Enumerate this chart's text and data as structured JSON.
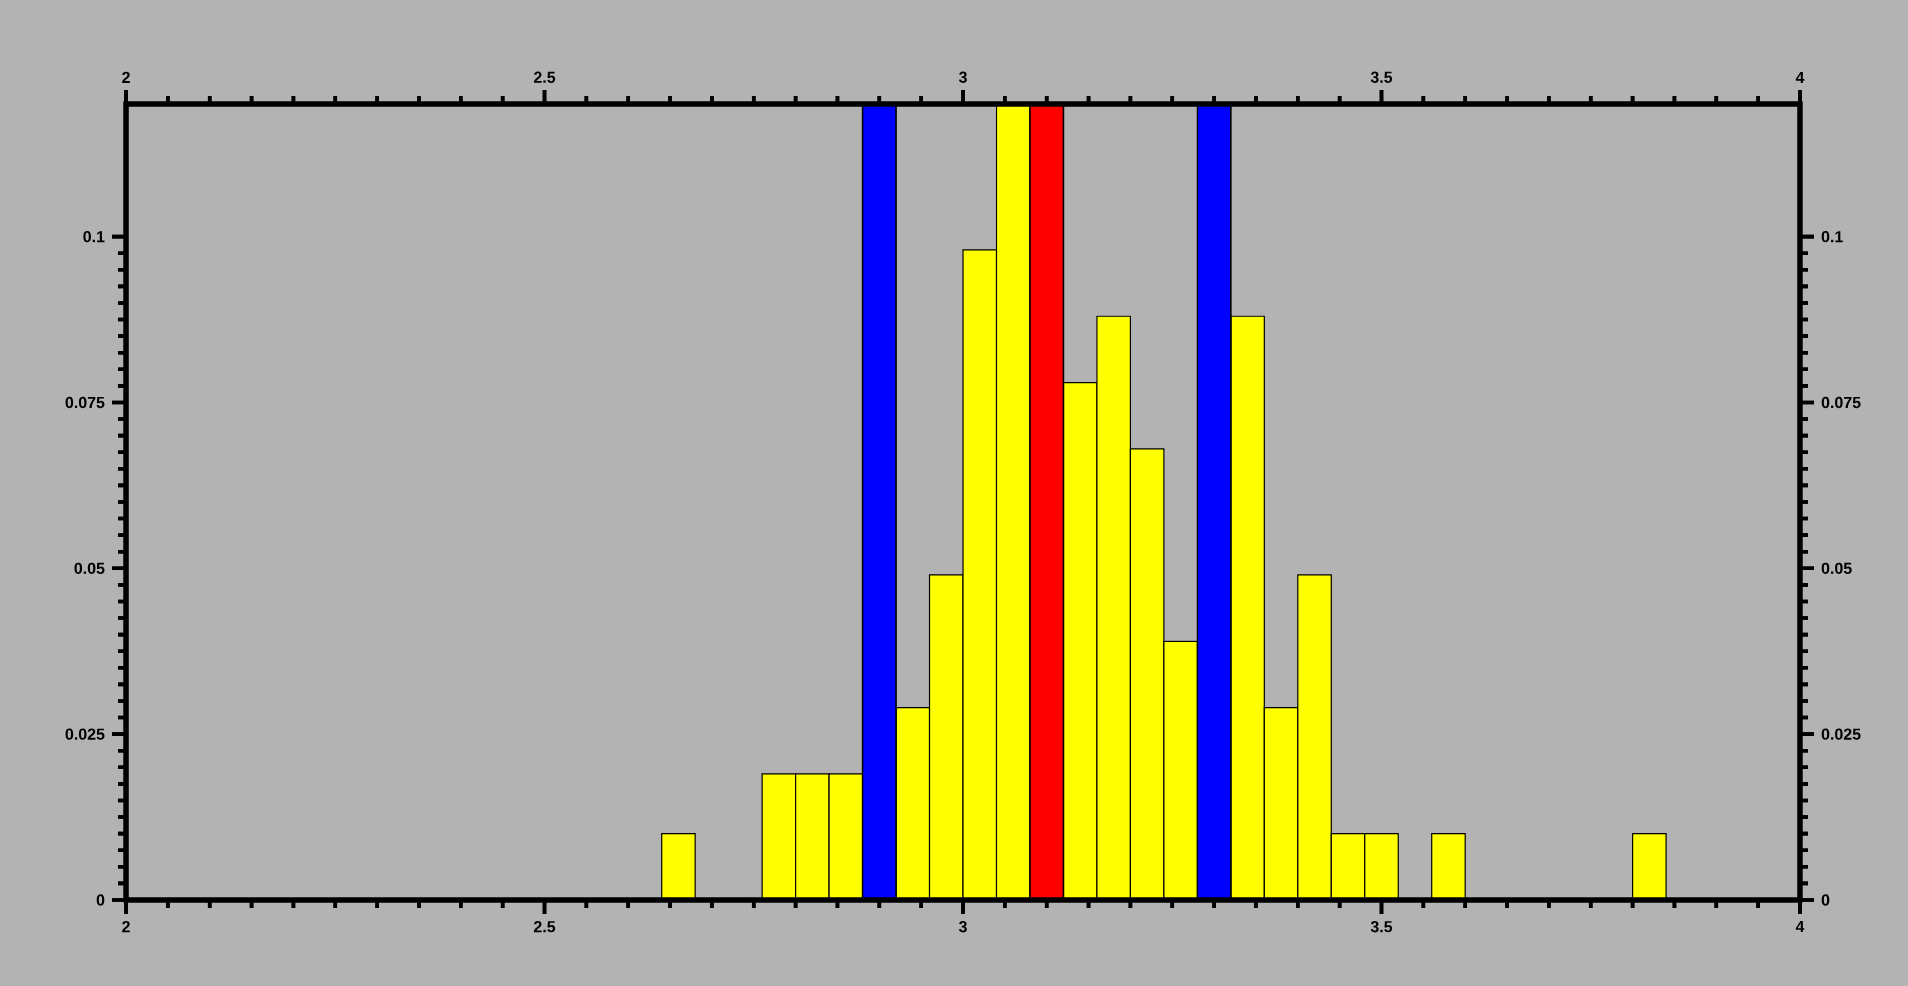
{
  "chart_data": {
    "type": "histogram",
    "color": "#ffff00",
    "bins": [
      2.64,
      2.68,
      2.72,
      2.76,
      2.8,
      2.84,
      2.88,
      2.92,
      2.96,
      3.0,
      3.04,
      3.08,
      3.12,
      3.16,
      3.2,
      3.24,
      3.28,
      3.32,
      3.36,
      3.4,
      3.44,
      3.48,
      3.52,
      3.56,
      3.6,
      3.64,
      3.68,
      3.72,
      3.76,
      3.8,
      3.84
    ],
    "values": [
      0.01,
      0,
      0,
      0.019,
      0.019,
      0.019,
      null,
      0.029,
      0.049,
      0.098,
      0.12,
      null,
      0.078,
      0.088,
      0.068,
      0.039,
      null,
      0.088,
      0.029,
      0.049,
      0.01,
      0.01,
      0,
      0.01,
      0,
      0,
      0,
      0,
      0,
      0.01
    ],
    "xlim": [
      2,
      4
    ],
    "xticks": [
      2,
      2.5,
      3,
      3.5,
      4
    ],
    "x2lim": [
      2,
      4
    ],
    "x2ticks": [
      2,
      2.5,
      3,
      3.5,
      4
    ],
    "ylim": [
      0,
      0.12
    ],
    "yticks": [
      0,
      0.025,
      0.05,
      0.075,
      0.1
    ],
    "y2lim": [
      0,
      0.12
    ],
    "y2ticks": [
      0,
      0.025,
      0.05,
      0.075,
      0.1
    ],
    "bands": [
      {
        "axis": "x",
        "from": 2.88,
        "to": 2.92,
        "color": "#0000ff"
      },
      {
        "axis": "x",
        "from": 3.08,
        "to": 3.12,
        "color": "#ff0000"
      },
      {
        "axis": "x",
        "from": 3.28,
        "to": 3.32,
        "color": "#0000ff"
      }
    ]
  }
}
